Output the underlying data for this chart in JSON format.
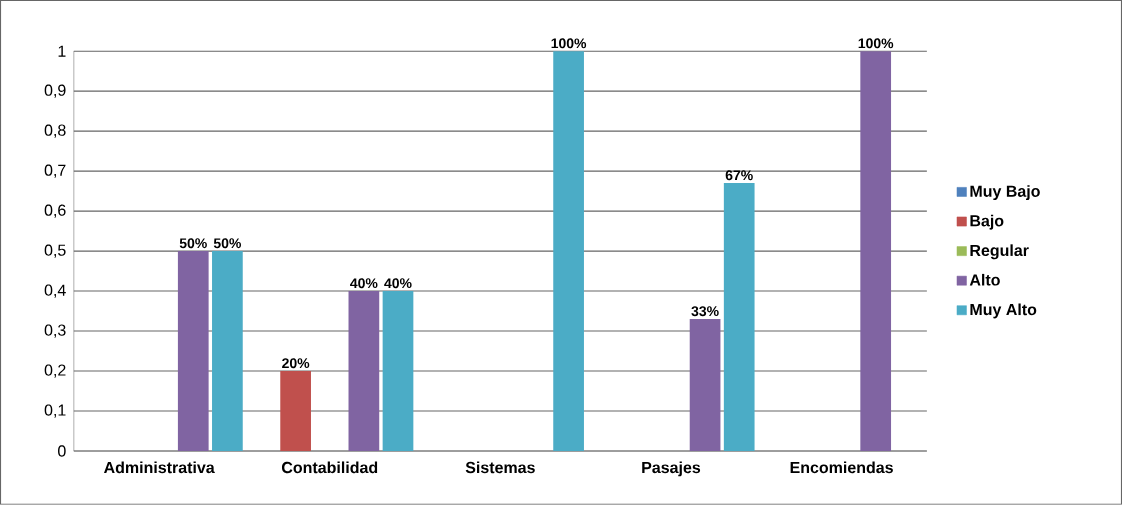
{
  "chart_data": {
    "type": "bar",
    "categories": [
      "Administrativa",
      "Contabilidad",
      "Sistemas",
      "Pasajes",
      "Encomiendas"
    ],
    "series": [
      {
        "name": "Muy Bajo",
        "color": "#4f81bd",
        "values": [
          null,
          null,
          null,
          null,
          null
        ]
      },
      {
        "name": "Bajo",
        "color": "#c0504d",
        "values": [
          null,
          0.2,
          null,
          null,
          null
        ],
        "value_labels": [
          null,
          "20%",
          null,
          null,
          null
        ]
      },
      {
        "name": "Regular",
        "color": "#9bbb59",
        "values": [
          null,
          null,
          null,
          null,
          null
        ]
      },
      {
        "name": "Alto",
        "color": "#8064a2",
        "values": [
          0.5,
          0.4,
          null,
          0.33,
          1
        ],
        "value_labels": [
          "50%",
          "40%",
          null,
          "33%",
          "100%"
        ]
      },
      {
        "name": "Muy Alto",
        "color": "#4bacc6",
        "values": [
          0.5,
          0.4,
          1,
          0.67,
          null
        ],
        "value_labels": [
          "50%",
          "40%",
          "100%",
          "67%",
          null
        ]
      }
    ],
    "ylim": [
      0,
      1
    ],
    "yticks": [
      0,
      {
        "value": 0.1,
        "label": "0,1"
      },
      {
        "value": 0.2,
        "label": "0,2"
      },
      {
        "value": 0.3,
        "label": "0,3"
      },
      {
        "value": 0.4,
        "label": "0,4"
      },
      {
        "value": 0.5,
        "label": "0,5"
      },
      {
        "value": 0.6,
        "label": "0,6"
      },
      {
        "value": 0.7,
        "label": "0,7"
      },
      {
        "value": 0.8,
        "label": "0,8"
      },
      {
        "value": 0.9,
        "label": "0,9"
      },
      1
    ],
    "grid": "y",
    "legend": "right"
  }
}
